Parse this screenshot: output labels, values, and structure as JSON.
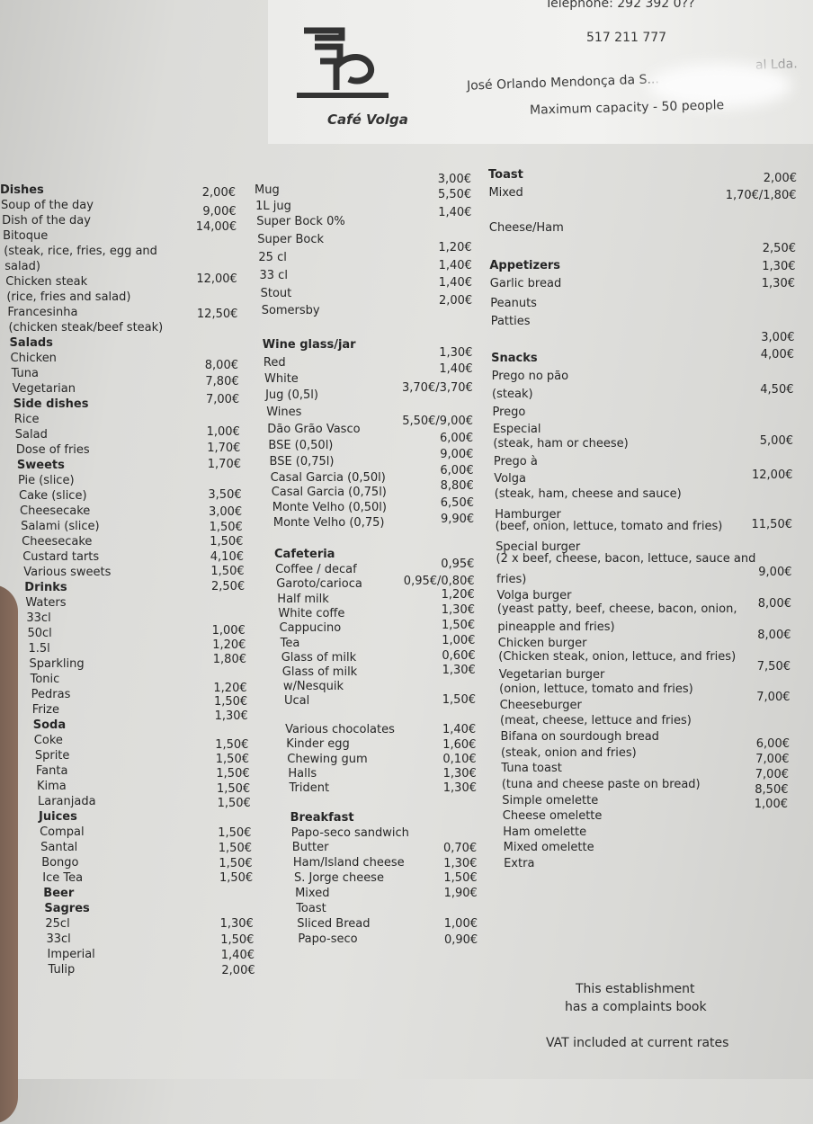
{
  "header": {
    "brand_name": "Café Volga",
    "telephone": "Telephone: 292 392 0??",
    "phone2": "517 211 777",
    "owner": "José Orlando Mendonça da S...",
    "owner_suffix": "al Lda.",
    "capacity": "Maximum capacity - 50 people"
  },
  "columns": [
    {
      "labels": [
        {
          "text": "Dishes",
          "bold": true
        },
        {
          "text": "Soup of the day"
        },
        {
          "text": "Dish of the day"
        },
        {
          "text": "Bitoque"
        },
        {
          "text": "(steak, rice, fries, egg and"
        },
        {
          "text": "salad)"
        },
        {
          "text": "Chicken steak"
        },
        {
          "text": "(rice, fries and salad)"
        },
        {
          "text": "Francesinha"
        },
        {
          "text": "(chicken steak/beef steak)"
        },
        {
          "text": "Salads",
          "bold": true
        },
        {
          "text": "Chicken"
        },
        {
          "text": "Tuna"
        },
        {
          "text": "Vegetarian"
        },
        {
          "text": "Side dishes",
          "bold": true
        },
        {
          "text": "Rice"
        },
        {
          "text": "Salad"
        },
        {
          "text": "Dose of fries"
        },
        {
          "text": "Sweets",
          "bold": true
        },
        {
          "text": "Pie (slice)"
        },
        {
          "text": "Cake (slice)"
        },
        {
          "text": "Cheesecake"
        },
        {
          "text": "Salami (slice)"
        },
        {
          "text": "Cheesecake"
        },
        {
          "text": "Custard tarts"
        },
        {
          "text": "Various sweets"
        },
        {
          "text": "Drinks",
          "bold": true
        },
        {
          "text": "Waters"
        },
        {
          "text": "33cl"
        },
        {
          "text": "50cl"
        },
        {
          "text": "1.5l"
        },
        {
          "text": "Sparkling"
        },
        {
          "text": "Tonic"
        },
        {
          "text": "Pedras"
        },
        {
          "text": "Frize"
        },
        {
          "text": "Soda",
          "bold": true
        },
        {
          "text": "Coke"
        },
        {
          "text": "Sprite"
        },
        {
          "text": "Fanta"
        },
        {
          "text": "Kima"
        },
        {
          "text": "Laranjada"
        },
        {
          "text": "Juices",
          "bold": true
        },
        {
          "text": "Compal"
        },
        {
          "text": "Santal"
        },
        {
          "text": "Bongo"
        },
        {
          "text": "Ice Tea"
        },
        {
          "text": "Beer",
          "bold": true
        },
        {
          "text": "Sagres",
          "bold": true
        },
        {
          "text": "25cl"
        },
        {
          "text": "33cl"
        },
        {
          "text": "Imperial"
        },
        {
          "text": "Tulip"
        }
      ],
      "prices": [
        "2,00€",
        "9,00€",
        "14,00€",
        "12,00€",
        "12,50€",
        "8,00€",
        "7,80€",
        "7,00€",
        "1,00€",
        "1,70€",
        "1,70€",
        "3,50€",
        "3,00€",
        "1,50€",
        "1,50€",
        "4,10€",
        "1,50€",
        "2,50€",
        "1,00€",
        "1,20€",
        "1,80€",
        "1,20€",
        "1,50€",
        "1,30€",
        "1,50€",
        "1,50€",
        "1,50€",
        "1,50€",
        "1,50€",
        "1,50€",
        "1,50€",
        "1,50€",
        "1,50€",
        "1,30€",
        "1,50€",
        "1,40€",
        "2,00€"
      ]
    },
    {
      "labels": [
        {
          "text": "Mug"
        },
        {
          "text": "1L jug"
        },
        {
          "text": "Super Bock 0%"
        },
        {
          "text": "Super Bock"
        },
        {
          "text": "25 cl"
        },
        {
          "text": "33 cl"
        },
        {
          "text": "Stout"
        },
        {
          "text": "Somersby"
        },
        {
          "text": "Wine glass/jar",
          "bold": true
        },
        {
          "text": "Red"
        },
        {
          "text": "White"
        },
        {
          "text": "Jug (0,5l)"
        },
        {
          "text": "Wines"
        },
        {
          "text": "Dão Grão Vasco"
        },
        {
          "text": "BSE (0,50l)"
        },
        {
          "text": "BSE (0,75l)"
        },
        {
          "text": "Casal Garcia (0,50l)"
        },
        {
          "text": "Casal Garcia (0,75l)"
        },
        {
          "text": "Monte Velho (0,50l)"
        },
        {
          "text": "Monte Velho (0,75)"
        },
        {
          "text": "Cafeteria",
          "bold": true
        },
        {
          "text": "Coffee / decaf"
        },
        {
          "text": "Garoto/carioca"
        },
        {
          "text": "Half milk"
        },
        {
          "text": "White coffe"
        },
        {
          "text": "Cappucino"
        },
        {
          "text": "Tea"
        },
        {
          "text": "Glass of milk"
        },
        {
          "text": "Glass of milk"
        },
        {
          "text": "w/Nesquik"
        },
        {
          "text": "Ucal"
        },
        {
          "text": "Various chocolates"
        },
        {
          "text": "Kinder egg"
        },
        {
          "text": "Chewing gum"
        },
        {
          "text": "Halls"
        },
        {
          "text": "Trident"
        },
        {
          "text": "Breakfast",
          "bold": true
        },
        {
          "text": "Papo-seco sandwich"
        },
        {
          "text": "Butter"
        },
        {
          "text": "Ham/Island cheese"
        },
        {
          "text": "S. Jorge cheese"
        },
        {
          "text": "Mixed"
        },
        {
          "text": "Toast"
        },
        {
          "text": "Sliced Bread"
        },
        {
          "text": "Papo-seco"
        }
      ],
      "prices": [
        "3,00€",
        "5,50€",
        "1,40€",
        "1,20€",
        "1,40€",
        "1,40€",
        "2,00€",
        "1,30€",
        "1,40€",
        "3,70€/3,70€",
        "5,50€/9,00€",
        "6,00€",
        "9,00€",
        "6,00€",
        "8,80€",
        "6,50€",
        "9,90€",
        "0,95€",
        "0,95€/0,80€",
        "1,20€",
        "1,30€",
        "1,50€",
        "1,00€",
        "0,60€",
        "1,30€",
        "1,50€",
        "1,40€",
        "1,60€",
        "0,10€",
        "1,30€",
        "1,30€",
        "0,70€",
        "1,30€",
        "1,50€",
        "1,90€",
        "1,00€",
        "0,90€"
      ]
    },
    {
      "labels": [
        {
          "text": "Toast",
          "bold": true
        },
        {
          "text": "Mixed"
        },
        {
          "text": "Cheese/Ham"
        },
        {
          "text": "Appetizers",
          "bold": true
        },
        {
          "text": "Garlic bread"
        },
        {
          "text": "Peanuts"
        },
        {
          "text": "Patties"
        },
        {
          "text": "Snacks",
          "bold": true
        },
        {
          "text": "Prego no pão"
        },
        {
          "text": "(steak)"
        },
        {
          "text": "Prego"
        },
        {
          "text": "Especial"
        },
        {
          "text": "(steak, ham or cheese)"
        },
        {
          "text": "Prego à"
        },
        {
          "text": "Volga"
        },
        {
          "text": "(steak, ham, cheese and sauce)"
        },
        {
          "text": "Hamburger"
        },
        {
          "text": "(beef, onion, lettuce, tomato and fries)"
        },
        {
          "text": "Special burger"
        },
        {
          "text": "(2 x beef, cheese, bacon, lettuce, sauce and"
        },
        {
          "text": "fries)"
        },
        {
          "text": "Volga burger"
        },
        {
          "text": "(yeast patty, beef, cheese, bacon, onion,"
        },
        {
          "text": "pineapple and fries)"
        },
        {
          "text": "Chicken burger"
        },
        {
          "text": "(Chicken steak, onion, lettuce, and fries)"
        },
        {
          "text": "Vegetarian burger"
        },
        {
          "text": "(onion, lettuce, tomato and fries)"
        },
        {
          "text": "Cheeseburger"
        },
        {
          "text": "(meat, cheese, lettuce and fries)"
        },
        {
          "text": "Bifana on sourdough bread"
        },
        {
          "text": "(steak, onion and fries)"
        },
        {
          "text": "Tuna toast"
        },
        {
          "text": "(tuna and cheese paste on bread)"
        },
        {
          "text": "Simple omelette"
        },
        {
          "text": "Cheese omelette"
        },
        {
          "text": "Ham omelette"
        },
        {
          "text": "Mixed omelette"
        },
        {
          "text": "Extra"
        }
      ],
      "prices": [
        "2,00€",
        "1,70€/1,80€",
        "2,50€",
        "1,30€",
        "1,30€",
        "3,00€",
        "4,00€",
        "4,50€",
        "5,00€",
        "12,00€",
        "11,50€",
        "9,00€",
        "8,00€",
        "8,00€",
        "7,50€",
        "7,00€",
        "6,00€",
        "7,00€",
        "7,00€",
        "8,50€",
        "1,00€"
      ]
    }
  ],
  "footer": {
    "complaints_line1": "This establishment",
    "complaints_line2": "has a complaints book",
    "vat": "VAT included at current rates"
  }
}
